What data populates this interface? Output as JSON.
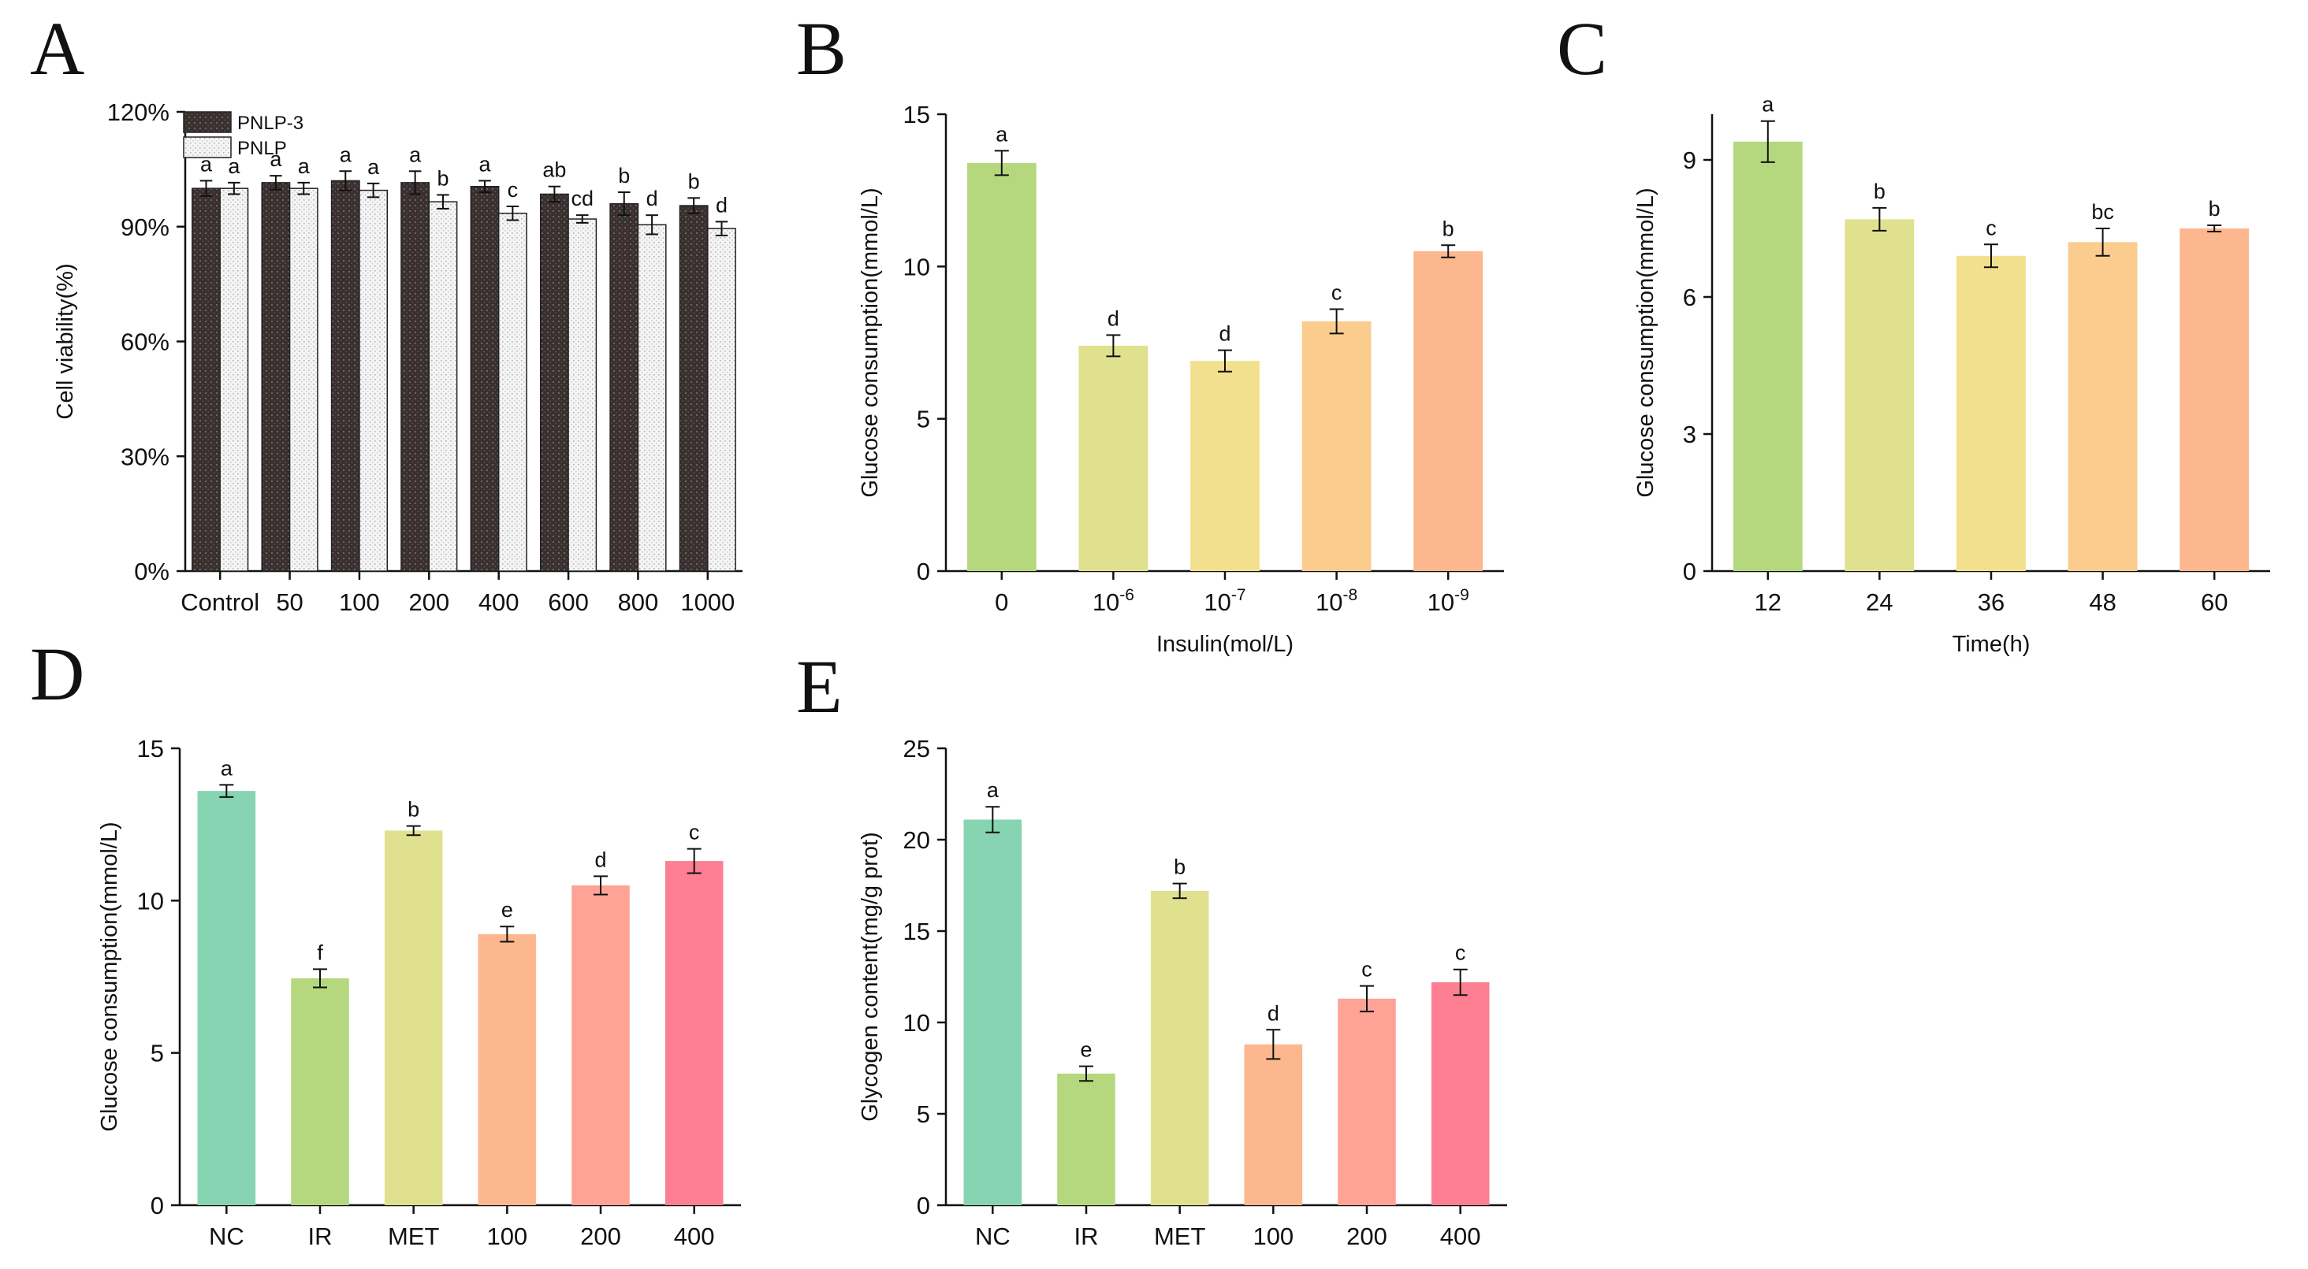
{
  "figure": {
    "panels": [
      "A",
      "B",
      "C",
      "D",
      "E"
    ]
  },
  "chart_data": [
    {
      "id": "A",
      "type": "bar",
      "title": "",
      "xlabel": "",
      "ylabel": "Cell viability(%)",
      "ylim": [
        0,
        120
      ],
      "yticks": [
        "0%",
        "30%",
        "60%",
        "90%",
        "120%"
      ],
      "ytick_values": [
        0,
        30,
        60,
        90,
        120
      ],
      "categories": [
        "Control",
        "50",
        "100",
        "200",
        "400",
        "600",
        "800",
        "1000"
      ],
      "legend_position": "top-left",
      "series": [
        {
          "name": "PNLP-3",
          "color": "#3a3030",
          "values": [
            100,
            101.5,
            102,
            101.5,
            100.5,
            98.5,
            96,
            95.5
          ],
          "errors": [
            2,
            1.8,
            2.5,
            3,
            1.5,
            2,
            3,
            2
          ],
          "labels": [
            "a",
            "a",
            "a",
            "a",
            "a",
            "ab",
            "b",
            "b"
          ]
        },
        {
          "name": "PNLP",
          "color": "#e8e8e8",
          "values": [
            100,
            100,
            99.5,
            96.5,
            93.5,
            92,
            90.5,
            89.5
          ],
          "errors": [
            1.5,
            1.5,
            1.8,
            1.8,
            1.8,
            1,
            2.5,
            1.8
          ],
          "labels": [
            "a",
            "a",
            "a",
            "b",
            "c",
            "cd",
            "d",
            "d"
          ]
        }
      ]
    },
    {
      "id": "B",
      "type": "bar",
      "title": "",
      "xlabel": "Insulin(mol/L)",
      "ylabel": "Glucose consumption(mmol/L)",
      "ylim": [
        0,
        15
      ],
      "yticks": [
        "0",
        "5",
        "10",
        "15"
      ],
      "ytick_values": [
        0,
        5,
        10,
        15
      ],
      "categories": [
        "0",
        "10-6",
        "10-7",
        "10-8",
        "10-9"
      ],
      "category_base": [
        "0",
        "10",
        "10",
        "10",
        "10"
      ],
      "category_sup": [
        "",
        "-6",
        "-7",
        "-8",
        "-9"
      ],
      "series": [
        {
          "name": "Glucose consumption",
          "values": [
            13.4,
            7.4,
            6.9,
            8.2,
            10.5
          ],
          "errors": [
            0.4,
            0.35,
            0.35,
            0.4,
            0.2
          ],
          "labels": [
            "a",
            "d",
            "d",
            "c",
            "b"
          ],
          "colors": [
            "#b5d87f",
            "#e0e18f",
            "#f3e08e",
            "#fbcc8e",
            "#fdb78e"
          ]
        }
      ]
    },
    {
      "id": "C",
      "type": "bar",
      "title": "",
      "xlabel": "Time(h)",
      "ylabel": "Glucose consumption(mmol/L)",
      "ylim": [
        0,
        10
      ],
      "yticks": [
        "0",
        "3",
        "6",
        "9"
      ],
      "ytick_values": [
        0,
        3,
        6,
        9
      ],
      "categories": [
        "12",
        "24",
        "36",
        "48",
        "60"
      ],
      "series": [
        {
          "name": "Glucose consumption",
          "values": [
            9.4,
            7.7,
            6.9,
            7.2,
            7.5
          ],
          "errors": [
            0.45,
            0.25,
            0.25,
            0.3,
            0.07
          ],
          "labels": [
            "a",
            "b",
            "c",
            "bc",
            "b"
          ],
          "colors": [
            "#b5d87f",
            "#e0e18f",
            "#f3e08e",
            "#fbcc8e",
            "#fdb78e"
          ]
        }
      ]
    },
    {
      "id": "D",
      "type": "bar",
      "title": "",
      "xlabel": "",
      "ylabel": "Glucose consumption(mmol/L)",
      "ylim": [
        0,
        15
      ],
      "yticks": [
        "0",
        "5",
        "10",
        "15"
      ],
      "ytick_values": [
        0,
        5,
        10,
        15
      ],
      "categories": [
        "NC",
        "IR",
        "MET",
        "100",
        "200",
        "400"
      ],
      "series": [
        {
          "name": "Glucose consumption",
          "values": [
            13.6,
            7.45,
            12.3,
            8.9,
            10.5,
            11.3
          ],
          "errors": [
            0.2,
            0.3,
            0.15,
            0.25,
            0.3,
            0.4
          ],
          "labels": [
            "a",
            "f",
            "b",
            "e",
            "d",
            "c"
          ],
          "colors": [
            "#86d4b1",
            "#b5d87f",
            "#e0e18f",
            "#fdb78e",
            "#fea395",
            "#fe7f92"
          ]
        }
      ]
    },
    {
      "id": "E",
      "type": "bar",
      "title": "",
      "xlabel": "",
      "ylabel": "Glycogen content(mg/g prot)",
      "ylim": [
        0,
        25
      ],
      "yticks": [
        "0",
        "5",
        "10",
        "15",
        "20",
        "25"
      ],
      "ytick_values": [
        0,
        5,
        10,
        15,
        20,
        25
      ],
      "categories": [
        "NC",
        "IR",
        "MET",
        "100",
        "200",
        "400"
      ],
      "series": [
        {
          "name": "Glycogen content",
          "values": [
            21.1,
            7.2,
            17.2,
            8.8,
            11.3,
            12.2
          ],
          "errors": [
            0.7,
            0.4,
            0.4,
            0.8,
            0.7,
            0.7
          ],
          "labels": [
            "a",
            "e",
            "b",
            "d",
            "c",
            "c"
          ],
          "colors": [
            "#86d4b1",
            "#b5d87f",
            "#e0e18f",
            "#fdb78e",
            "#fea395",
            "#fe7f92"
          ]
        }
      ]
    }
  ]
}
